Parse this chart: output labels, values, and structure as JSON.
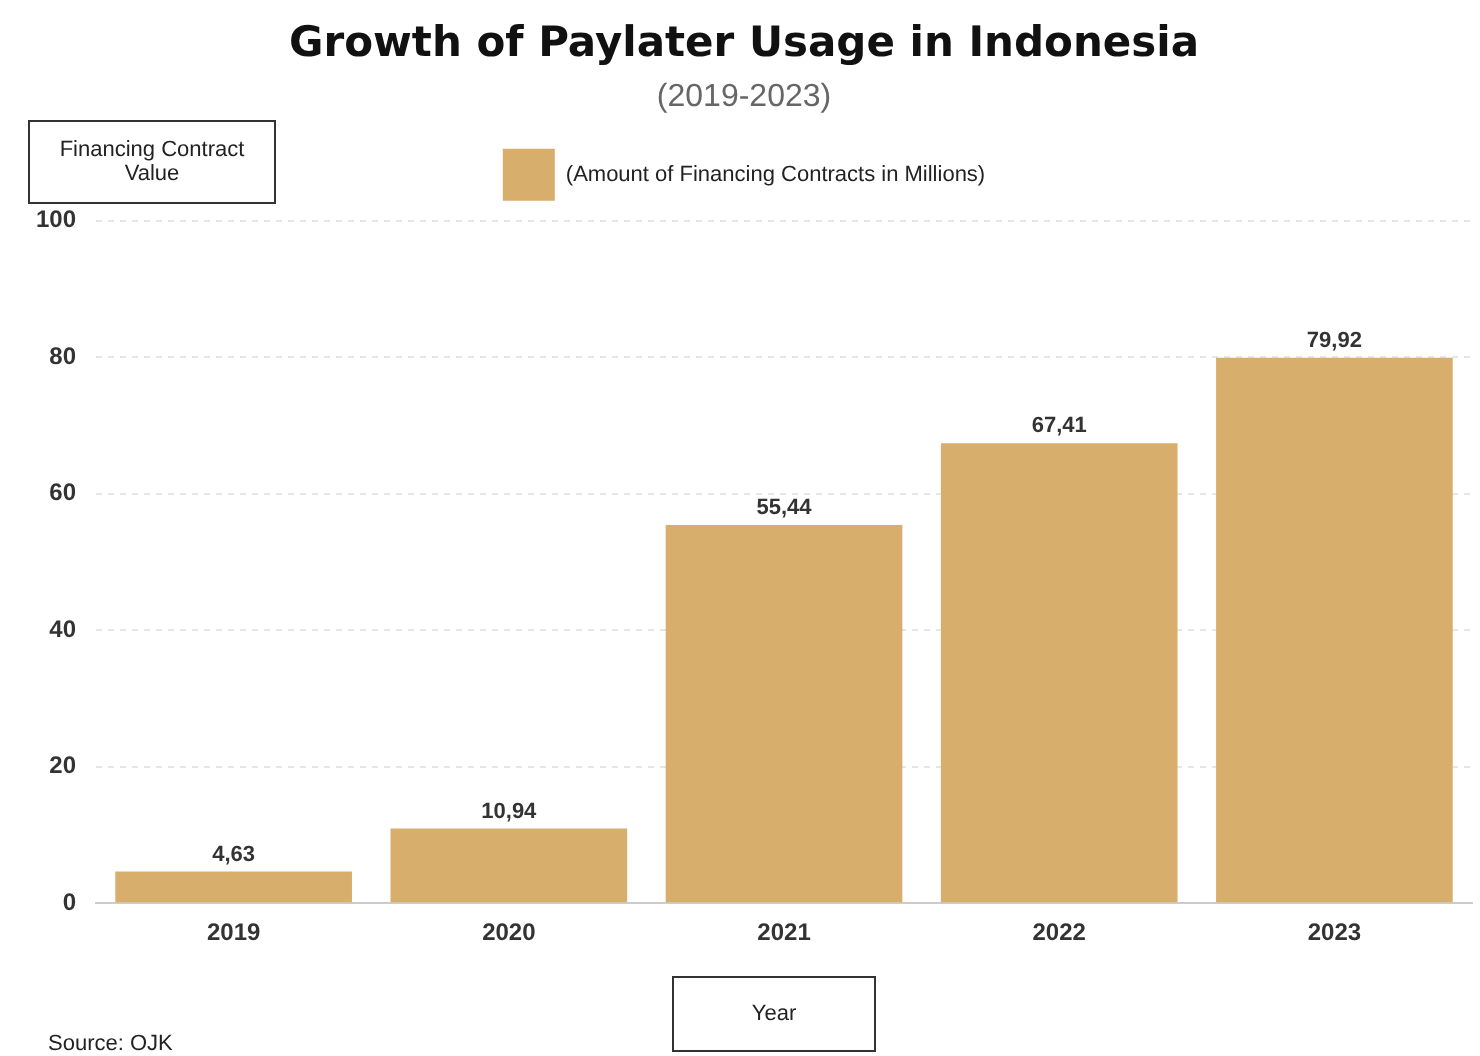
{
  "chart_data": {
    "type": "bar",
    "title": "Growth of Paylater Usage in Indonesia",
    "subtitle": "(2019-2023)",
    "ylabel": "Financing Contract Value",
    "xlabel": "Year",
    "categories": [
      "2019",
      "2020",
      "2021",
      "2022",
      "2023"
    ],
    "series": [
      {
        "name": "(Amount of Financing Contracts in Millions)",
        "color": "#d8ae6c",
        "values": [
          4.63,
          10.94,
          55.44,
          67.41,
          79.92
        ],
        "value_labels": [
          "4,63",
          "10,94",
          "55,44",
          "67,41",
          "79,92"
        ]
      }
    ],
    "ylim": [
      0,
      100
    ],
    "yticks": [
      0,
      20,
      40,
      60,
      80,
      100
    ],
    "grid": "y",
    "legend": "top",
    "annotations": [
      "Source: OJK"
    ]
  }
}
